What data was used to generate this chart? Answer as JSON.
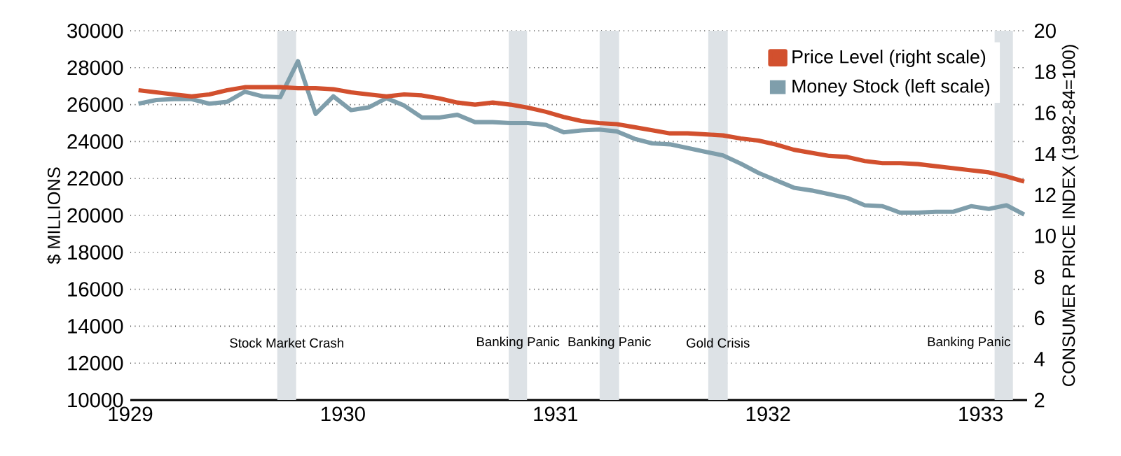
{
  "chart_data": {
    "type": "line",
    "xlabel": null,
    "ylabel": "$ MILLIONS",
    "y2label": "CONSUMER PRICE INDEX (1982-84=100)",
    "x": [
      "1929-01-15",
      "1929-02-15",
      "1929-03-15",
      "1929-04-15",
      "1929-05-15",
      "1929-06-15",
      "1929-07-15",
      "1929-08-15",
      "1929-09-15",
      "1929-10-15",
      "1929-11-15",
      "1929-12-15",
      "1930-01-15",
      "1930-02-15",
      "1930-03-15",
      "1930-04-15",
      "1930-05-15",
      "1930-06-15",
      "1930-07-15",
      "1930-08-15",
      "1930-09-15",
      "1930-10-15",
      "1930-11-15",
      "1930-12-15",
      "1931-01-15",
      "1931-02-15",
      "1931-03-15",
      "1931-04-15",
      "1931-05-15",
      "1931-06-15",
      "1931-07-15",
      "1931-08-15",
      "1931-09-15",
      "1931-10-15",
      "1931-11-15",
      "1931-12-15",
      "1932-01-15",
      "1932-02-15",
      "1932-03-15",
      "1932-04-15",
      "1932-05-15",
      "1932-06-15",
      "1932-07-15",
      "1932-08-15",
      "1932-09-15",
      "1932-10-15",
      "1932-11-15",
      "1932-12-15",
      "1933-01-15",
      "1933-02-15",
      "1933-03-15"
    ],
    "series": [
      {
        "name": "Price Level (right scale)",
        "color": "#d2502e",
        "axis": "y2",
        "values": [
          17.1,
          17.0,
          16.9,
          16.8,
          16.9,
          17.1,
          17.25,
          17.25,
          17.25,
          17.2,
          17.2,
          17.15,
          17.0,
          16.9,
          16.8,
          16.9,
          16.85,
          16.7,
          16.5,
          16.4,
          16.5,
          16.4,
          16.25,
          16.05,
          15.8,
          15.6,
          15.5,
          15.45,
          15.3,
          15.15,
          15.0,
          15.0,
          14.95,
          14.9,
          14.75,
          14.65,
          14.45,
          14.2,
          14.05,
          13.9,
          13.85,
          13.65,
          13.55,
          13.55,
          13.5,
          13.4,
          13.3,
          13.2,
          13.1,
          12.9,
          12.65
        ]
      },
      {
        "name": "Money Stock (left scale)",
        "color": "#7f9eab",
        "values": [
          26050,
          26250,
          26300,
          26300,
          26050,
          26150,
          26700,
          26450,
          26400,
          28350,
          25500,
          26450,
          25700,
          25850,
          26350,
          25950,
          25300,
          25300,
          25450,
          25050,
          25050,
          25000,
          25000,
          24900,
          24500,
          24600,
          24650,
          24550,
          24150,
          23900,
          23850,
          23650,
          23450,
          23250,
          22800,
          22300,
          21900,
          21500,
          21350,
          21150,
          20950,
          20550,
          20500,
          20150,
          20150,
          20200,
          20200,
          20500,
          20350,
          20550,
          20050
        ]
      }
    ],
    "xlim": [
      "1929-01",
      "1933-03-20"
    ],
    "xticks": [
      "1929",
      "1930",
      "1931",
      "1932",
      "1933"
    ],
    "ylim": [
      10000,
      30000
    ],
    "yticks": [
      10000,
      12000,
      14000,
      16000,
      18000,
      20000,
      22000,
      24000,
      26000,
      28000,
      30000
    ],
    "y2lim": [
      2,
      20
    ],
    "y2ticks": [
      2,
      4,
      6,
      8,
      10,
      12,
      14,
      16,
      18,
      20
    ],
    "bands": [
      {
        "axis": "x",
        "from": "1929-09-10",
        "to": "1929-10-12",
        "label": "Stock Market Crash",
        "color": "#dde2e6"
      },
      {
        "axis": "x",
        "from": "1930-10-12",
        "to": "1930-11-13",
        "label": "Banking Panic",
        "color": "#dde2e6"
      },
      {
        "axis": "x",
        "from": "1931-03-16",
        "to": "1931-04-19",
        "label": "Banking Panic",
        "color": "#dde2e6"
      },
      {
        "axis": "x",
        "from": "1931-09-20",
        "to": "1931-10-23",
        "label": "Gold Crisis",
        "color": "#dde2e6"
      },
      {
        "axis": "x",
        "from": "1933-01-25",
        "to": "1933-02-26",
        "label": "Banking Panic",
        "color": "#dde2e6"
      }
    ],
    "grid": "y",
    "legend": "top right",
    "marker": "none",
    "line_style": "solid"
  }
}
